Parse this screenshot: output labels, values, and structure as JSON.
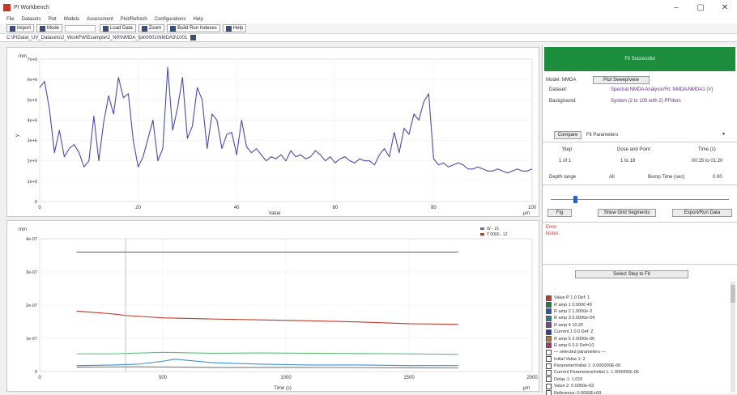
{
  "window": {
    "title": "PI Workbench",
    "controls": [
      "–",
      "▢",
      "✕"
    ]
  },
  "menu": {
    "items": [
      "File",
      "Datasets",
      "Plot",
      "Models",
      "Assessment",
      "Plot/Refresh",
      "Configurations",
      "Help"
    ]
  },
  "toolbar": {
    "buttons": [
      {
        "label": "Import",
        "icon": "import-icon"
      },
      {
        "label": "Mode",
        "icon": "pencil-icon"
      },
      {
        "label": "Load Data",
        "icon": "table-icon"
      },
      {
        "label": "Zoom",
        "icon": "pen-icon"
      },
      {
        "label": "Build Run Indexes",
        "icon": "table-icon"
      },
      {
        "label": "Help",
        "icon": "help-icon"
      }
    ]
  },
  "path": {
    "text": "C:\\PIData\\_UV_Datasets\\2_WorkFW\\Example\\2_NR\\NMDA_fpk\\0001\\NMDA3\\1001"
  },
  "top_chart": {
    "y_unit": "mm",
    "x_unit": "µm",
    "xlabel": "Value",
    "x_ticks": [
      "0",
      "20",
      "40",
      "60",
      "80",
      "100"
    ],
    "y_ticks": [
      "7e+6",
      "6e+6",
      "5e+6",
      "4e+6",
      "3e+6",
      "2e+6",
      "1e+6",
      "0"
    ],
    "line_color": "#4b4aa8"
  },
  "bottom_chart": {
    "y_unit": "mm",
    "x_unit": "µm",
    "xlabel": "Time (s)",
    "x_ticks": [
      "0",
      "500",
      "1000",
      "1500",
      "2000"
    ],
    "y_ticks": [
      "4e-07",
      "3e-07",
      "2e-07",
      "1e-07",
      "0"
    ],
    "legend": [
      {
        "label": "W - 15",
        "color": "#7a5fb8"
      },
      {
        "label": "T 0000 - 12",
        "color": "#c0392b"
      }
    ]
  },
  "chart_data": [
    {
      "type": "line",
      "title": "",
      "xlabel": "Value",
      "ylabel": "",
      "xlim": [
        0,
        100
      ],
      "ylim": [
        0,
        7
      ],
      "series": [
        {
          "color": "#4b4aa8",
          "x": [
            0,
            1,
            2,
            3,
            4,
            5,
            6,
            7,
            8,
            9,
            10,
            11,
            12,
            13,
            14,
            15,
            16,
            17,
            18,
            19,
            20,
            21,
            22,
            23,
            24,
            25,
            26,
            27,
            28,
            29,
            30,
            31,
            32,
            33,
            34,
            35,
            36,
            37,
            38,
            39,
            40,
            41,
            42,
            43,
            44,
            45,
            46,
            47,
            48,
            49,
            50,
            51,
            52,
            53,
            54,
            55,
            56,
            57,
            58,
            59,
            60,
            61,
            62,
            63,
            64,
            65,
            66,
            67,
            68,
            69,
            70,
            71,
            72,
            73,
            74,
            75,
            76,
            77,
            78,
            79,
            80,
            81,
            82,
            83,
            84,
            85,
            86,
            87,
            88,
            89,
            90,
            91,
            92,
            93,
            94,
            95,
            96,
            97,
            98,
            99,
            100
          ],
          "y": [
            5.6,
            5.9,
            4.5,
            2.4,
            3.5,
            2.2,
            2.6,
            2.8,
            2.4,
            1.7,
            2.0,
            4.2,
            2.0,
            3.9,
            5.2,
            4.3,
            6.1,
            5.1,
            5.3,
            3.0,
            1.7,
            2.2,
            3.1,
            4.0,
            2.0,
            2.6,
            6.6,
            3.5,
            4.6,
            6.1,
            3.1,
            3.7,
            5.6,
            5.0,
            2.6,
            4.3,
            4.0,
            2.6,
            3.3,
            3.4,
            2.3,
            4.0,
            2.7,
            2.4,
            2.6,
            2.3,
            2.0,
            2.2,
            2.1,
            2.3,
            2.0,
            2.5,
            2.2,
            2.3,
            2.1,
            2.2,
            2.5,
            2.3,
            2.0,
            2.2,
            1.9,
            2.1,
            2.2,
            2.0,
            1.9,
            2.1,
            2.0,
            2.0,
            1.8,
            2.3,
            2.6,
            2.2,
            3.4,
            2.4,
            3.6,
            3.3,
            4.3,
            4.0,
            4.9,
            5.3,
            2.1,
            1.8,
            1.9,
            1.7,
            1.8,
            1.9,
            1.8,
            1.6,
            1.6,
            1.7,
            1.6,
            1.5,
            1.5,
            1.6,
            1.5,
            1.4,
            1.5,
            1.6,
            1.5,
            1.5,
            1.6
          ]
        }
      ]
    },
    {
      "type": "line",
      "title": "",
      "xlabel": "Time (s)",
      "ylabel": "",
      "xlim": [
        0,
        2000
      ],
      "ylim": [
        0,
        4.5
      ],
      "series": [
        {
          "name": "W - 15",
          "color": "#7a5fb8",
          "x": [
            150,
            1700
          ],
          "y": [
            4.05,
            4.05
          ]
        },
        {
          "name": "T 0000 - 12",
          "color": "#c0392b",
          "x": [
            150,
            300,
            350,
            500,
            700,
            900,
            1100,
            1300,
            1500,
            1700
          ],
          "y": [
            2.05,
            1.95,
            1.9,
            1.82,
            1.78,
            1.75,
            1.72,
            1.68,
            1.62,
            1.6
          ]
        },
        {
          "color": "#5fbf7a",
          "x": [
            150,
            300,
            500,
            700,
            900,
            1100,
            1300,
            1500,
            1700
          ],
          "y": [
            0.6,
            0.6,
            0.65,
            0.62,
            0.63,
            0.62,
            0.61,
            0.6,
            0.58
          ]
        },
        {
          "color": "#3f8fd6",
          "x": [
            150,
            300,
            400,
            500,
            550,
            700,
            900,
            1100,
            1300,
            1500,
            1700
          ],
          "y": [
            0.2,
            0.22,
            0.25,
            0.35,
            0.42,
            0.3,
            0.25,
            0.22,
            0.22,
            0.2,
            0.2
          ]
        },
        {
          "color": "#7a7a7a",
          "x": [
            150,
            400,
            700,
            1000,
            1300,
            1700
          ],
          "y": [
            0.15,
            0.16,
            0.14,
            0.14,
            0.13,
            0.12
          ]
        }
      ]
    }
  ],
  "right_panel": {
    "status": "Fit Successful",
    "model_label": "Model: NMDA",
    "plot_button": "Plot Sweep/view",
    "info": [
      {
        "label": "Dataset:",
        "value": "Spectral NMDA Analysis/Fit: NMDA/NMDA1 (V)"
      },
      {
        "label": "Background:",
        "value": "System (2 to 100 with 2) PFilters"
      }
    ],
    "compare_button": "Compare",
    "fit_label": "Fit Parameters",
    "table_headers": [
      "Step",
      "Dose and Point",
      "Time (s)"
    ],
    "table_row": [
      "1 of 1",
      "1 to 18",
      "00:15 to 01:20"
    ],
    "fit_row": {
      "label": "Depth range",
      "value": "All",
      "label2": "Bump Time (sec)",
      "value2": "0.00"
    },
    "buttons": [
      "Fig",
      "Show Grid Segments",
      "Export/Run Data"
    ],
    "warnings": [
      "Error",
      "Notes"
    ],
    "signals_header": "Select Step to Fit",
    "signals": [
      {
        "label": "Value P 1.0 Def: 1",
        "color": "#c0392b",
        "checked": true
      },
      {
        "label": "R amp 1 0.0000 40",
        "color": "#1c7d3a",
        "checked": true
      },
      {
        "label": "R amp 2 1.0000e-3",
        "color": "#1e5aa8",
        "checked": true
      },
      {
        "label": "R amp 3 0.0000e-04",
        "color": "#168a8a",
        "checked": true
      },
      {
        "label": "R amp 4 10:20",
        "color": "#7a3fa8",
        "checked": true
      },
      {
        "label": "Current 1 0.0 Def: 2",
        "color": "#2f3fa0",
        "checked": true
      },
      {
        "label": "R amp 5 2.0000e-06",
        "color": "#b8772f",
        "checked": true
      },
      {
        "label": "R amp 6 0.0 Def=10",
        "color": "#a83a6a",
        "checked": true
      },
      {
        "label": "— selected parameters —",
        "color": "",
        "checked": false
      },
      {
        "label": "Initial Value 1: 2",
        "color": "",
        "checked": false
      },
      {
        "label": "Parameter/Initial 1: 0.000000E-06",
        "color": "",
        "checked": false
      },
      {
        "label": "Current Parameters/Initial 1: 1.000000E-06",
        "color": "",
        "checked": false
      },
      {
        "label": "Delay 1: 1.015",
        "color": "",
        "checked": false
      },
      {
        "label": "Value 2: 0.0000e-03",
        "color": "",
        "checked": false
      },
      {
        "label": "Reference: 0.0000E+00",
        "color": "",
        "checked": false
      }
    ]
  }
}
